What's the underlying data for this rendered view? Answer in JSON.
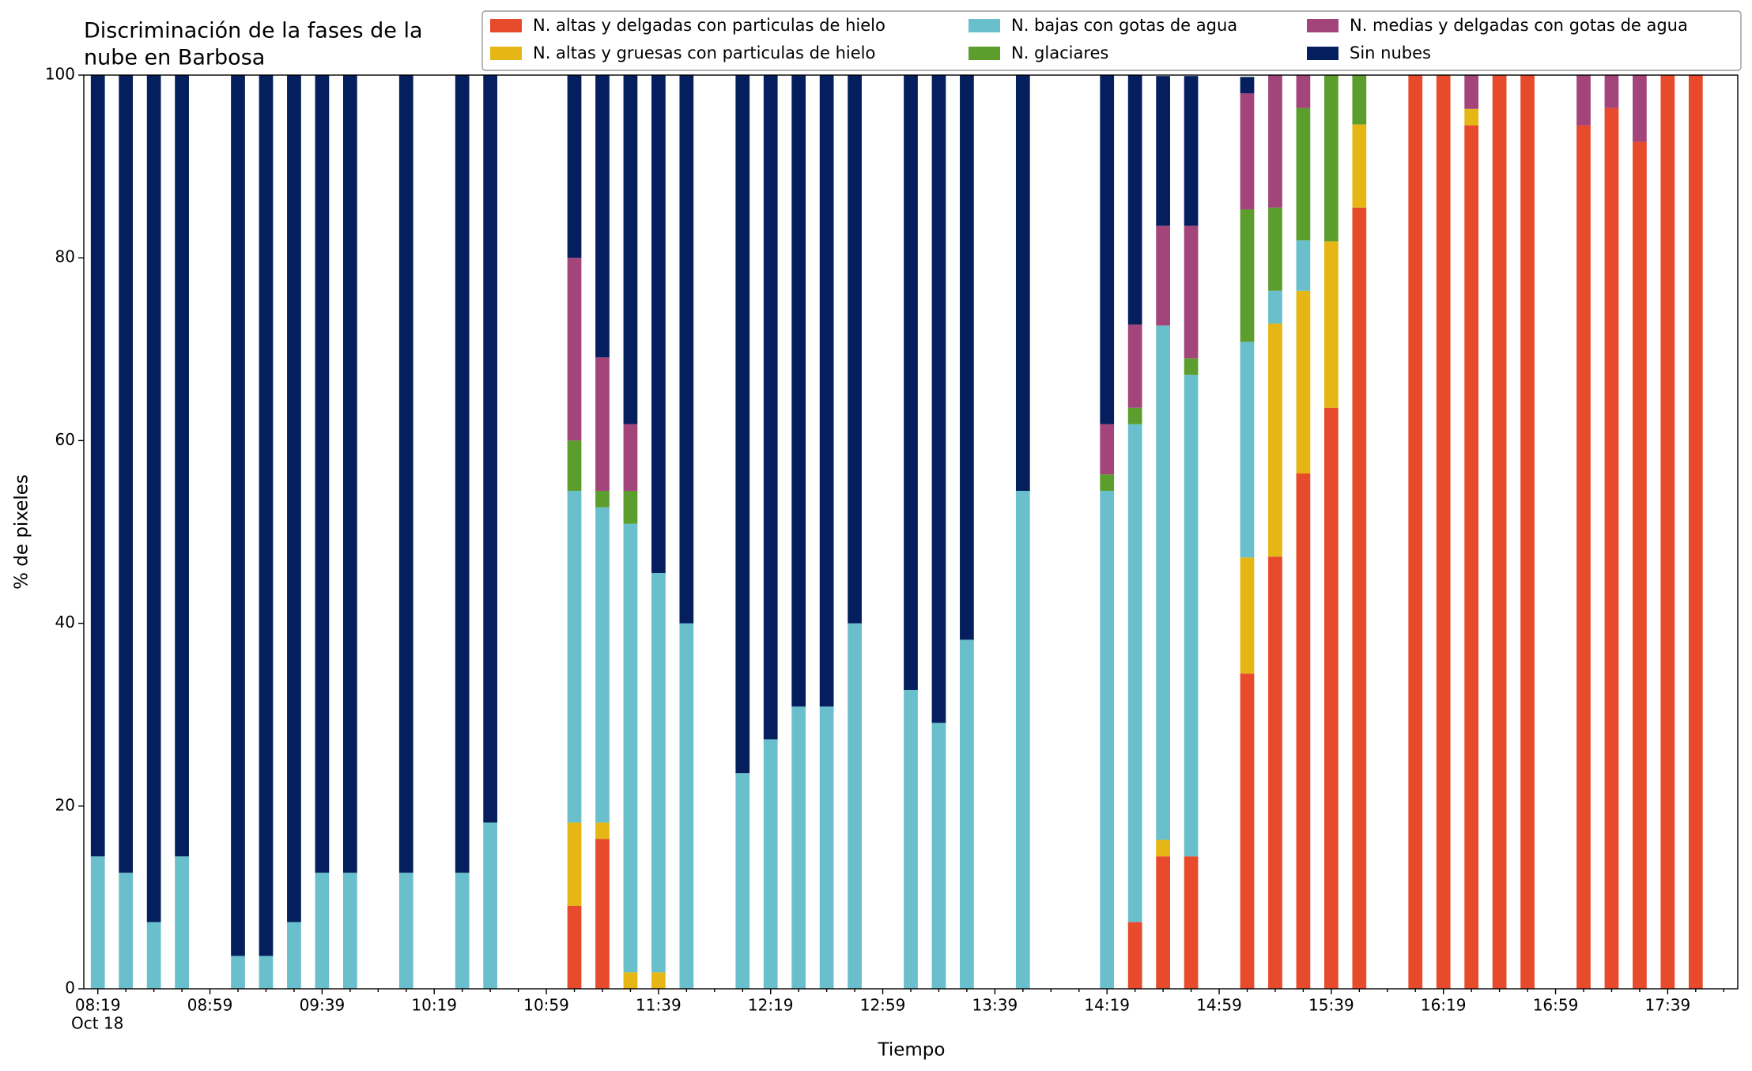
{
  "chart_data": {
    "type": "stacked_bar",
    "title": [
      "Discriminación de la fases de la",
      "nube en Barbosa"
    ],
    "xlabel": "Tiempo",
    "ylabel": "% de pixeles",
    "x_sublabel": "Oct 18",
    "categories": [
      "08:19",
      null,
      null,
      null,
      "08:59",
      null,
      null,
      null,
      "09:39",
      null,
      null,
      null,
      "10:19",
      null,
      null,
      null,
      "10:59",
      null,
      null,
      null,
      "11:39",
      null,
      null,
      null,
      "12:19",
      null,
      null,
      null,
      "12:59",
      null,
      null,
      null,
      "13:39",
      null,
      null,
      null,
      "14:19",
      null,
      null,
      null,
      "14:59",
      null,
      null,
      null,
      "15:39",
      null,
      null,
      null,
      "16:19",
      null,
      null,
      null,
      "16:59",
      null,
      null,
      null,
      "17:39",
      null,
      null
    ],
    "ylim": [
      0,
      100
    ],
    "yticks": [
      0,
      20,
      40,
      60,
      80,
      100
    ],
    "series": [
      {
        "name": "N. altas y delgadas con particulas de hielo",
        "color": "#e84a2c",
        "values": [
          0,
          0,
          0,
          0,
          null,
          0,
          0,
          0,
          0,
          0,
          null,
          0,
          null,
          0,
          0,
          null,
          null,
          9.1,
          16.4,
          0,
          0,
          0,
          null,
          0,
          0,
          0,
          0,
          0,
          null,
          0,
          0,
          0,
          null,
          0,
          null,
          null,
          0,
          7.3,
          14.5,
          14.5,
          null,
          34.5,
          47.3,
          56.4,
          63.6,
          85.5,
          null,
          100,
          100,
          94.5,
          100,
          100,
          null,
          94.5,
          96.4,
          92.7,
          100,
          100,
          null
        ]
      },
      {
        "name": "N. altas y gruesas con particulas de hielo",
        "color": "#e5b614",
        "values": [
          0,
          0,
          0,
          0,
          null,
          0,
          0,
          0,
          0,
          0,
          null,
          0,
          null,
          0,
          0,
          null,
          null,
          9.1,
          1.8,
          1.8,
          1.8,
          0,
          null,
          0,
          0,
          0,
          0,
          0,
          null,
          0,
          0,
          0,
          null,
          0,
          null,
          null,
          0,
          0,
          1.8,
          0,
          null,
          12.7,
          25.5,
          20,
          18.2,
          9.1,
          null,
          0,
          0,
          1.8,
          0,
          0,
          null,
          0,
          0,
          0,
          0,
          0,
          null
        ]
      },
      {
        "name": "N. bajas con gotas de agua",
        "color": "#69bfcb",
        "values": [
          14.5,
          12.7,
          7.3,
          14.5,
          null,
          3.6,
          3.6,
          7.3,
          12.7,
          12.7,
          null,
          12.7,
          null,
          12.7,
          18.2,
          null,
          null,
          36.3,
          34.5,
          49.1,
          43.7,
          40,
          null,
          23.6,
          27.3,
          30.9,
          30.9,
          40,
          null,
          32.7,
          29.1,
          38.2,
          null,
          54.5,
          null,
          null,
          54.5,
          54.5,
          56.3,
          52.7,
          null,
          23.6,
          3.6,
          5.5,
          0,
          0,
          null,
          0,
          0,
          0,
          0,
          0,
          null,
          0,
          0,
          0,
          0,
          0,
          null
        ]
      },
      {
        "name": "N. glaciares",
        "color": "#5c9e2e",
        "values": [
          0,
          0,
          0,
          0,
          null,
          0,
          0,
          0,
          0,
          0,
          null,
          0,
          null,
          0,
          0,
          null,
          null,
          5.5,
          1.8,
          3.6,
          0,
          0,
          null,
          0,
          0,
          0,
          0,
          0,
          null,
          0,
          0,
          0,
          null,
          0,
          null,
          null,
          1.8,
          1.8,
          0,
          1.8,
          null,
          14.5,
          9.1,
          14.5,
          18.2,
          5.4,
          null,
          0,
          0,
          0,
          0,
          0,
          null,
          0,
          0,
          0,
          0,
          0,
          null
        ]
      },
      {
        "name": "N. medias y delgadas con gotas de agua",
        "color": "#a3447a",
        "values": [
          0,
          0,
          0,
          0,
          null,
          0,
          0,
          0,
          0,
          0,
          null,
          0,
          null,
          0,
          0,
          null,
          null,
          20,
          14.6,
          7.3,
          0,
          0,
          null,
          0,
          0,
          0,
          0,
          0,
          null,
          0,
          0,
          0,
          null,
          0,
          null,
          null,
          5.5,
          9.1,
          10.9,
          14.5,
          null,
          12.7,
          14.5,
          3.6,
          0,
          0,
          null,
          0,
          0,
          3.7,
          0,
          0,
          null,
          5.5,
          3.6,
          7.3,
          0,
          0,
          null
        ]
      },
      {
        "name": "Sin nubes",
        "color": "#041e5e",
        "values": [
          85.5,
          87.3,
          92.7,
          85.5,
          null,
          96.4,
          96.4,
          92.7,
          87.3,
          87.3,
          null,
          87.3,
          null,
          87.3,
          81.8,
          null,
          null,
          20,
          30.9,
          38.2,
          54.5,
          60,
          null,
          76.4,
          72.7,
          69.1,
          69.1,
          60,
          null,
          67.3,
          70.9,
          61.8,
          null,
          45.5,
          null,
          null,
          38.2,
          27.3,
          16.4,
          16.4,
          null,
          1.8,
          0,
          0,
          0,
          0,
          null,
          0,
          0,
          0,
          0,
          0,
          null,
          0,
          0,
          0,
          0,
          0,
          null
        ]
      }
    ]
  }
}
